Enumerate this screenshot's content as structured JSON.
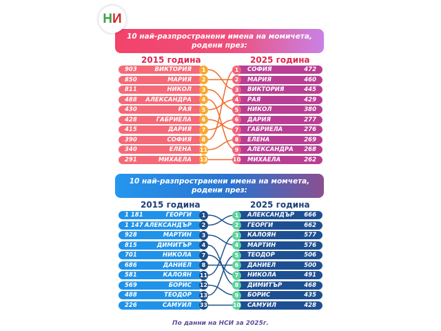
{
  "logo": {
    "text": "НИ"
  },
  "girls": {
    "title_line1": "10 най-разпространени имена на момичета,",
    "title_line2": "родени през:",
    "year_left": "2015 година",
    "year_right": "2025 година",
    "colors": {
      "left_bar": "#f46a78",
      "left_circle": "#f8a832",
      "right_bar": "#b83f93",
      "right_circle": "#f1637e",
      "line": "#ef6a2a",
      "header": "#e0264f"
    },
    "left": [
      {
        "count": "903",
        "name": "ВИКТОРИЯ",
        "rank": "1"
      },
      {
        "count": "850",
        "name": "МАРИЯ",
        "rank": "2"
      },
      {
        "count": "811",
        "name": "НИКОЛ",
        "rank": "3"
      },
      {
        "count": "488",
        "name": "АЛЕКСАНДРА",
        "rank": "4"
      },
      {
        "count": "430",
        "name": "РАЯ",
        "rank": "5"
      },
      {
        "count": "428",
        "name": "ГАБРИЕЛА",
        "rank": "6"
      },
      {
        "count": "415",
        "name": "ДАРИЯ",
        "rank": "7"
      },
      {
        "count": "390",
        "name": "СОФИЯ",
        "rank": "8"
      },
      {
        "count": "340",
        "name": "ЕЛЕНА",
        "rank": "11"
      },
      {
        "count": "291",
        "name": "МИХАЕЛА",
        "rank": "13"
      }
    ],
    "right": [
      {
        "rank": "1",
        "name": "СОФИЯ",
        "count": "472"
      },
      {
        "rank": "2",
        "name": "МАРИЯ",
        "count": "460"
      },
      {
        "rank": "3",
        "name": "ВИКТОРИЯ",
        "count": "445"
      },
      {
        "rank": "4",
        "name": "РАЯ",
        "count": "429"
      },
      {
        "rank": "5",
        "name": "НИКОЛ",
        "count": "380"
      },
      {
        "rank": "6",
        "name": "ДАРИЯ",
        "count": "277"
      },
      {
        "rank": "7",
        "name": "ГАБРИЕЛА",
        "count": "276"
      },
      {
        "rank": "8",
        "name": "ЕЛЕНА",
        "count": "269"
      },
      {
        "rank": "9",
        "name": "АЛЕКСАНДРА",
        "count": "268"
      },
      {
        "rank": "10",
        "name": "МИХАЕЛА",
        "count": "262"
      }
    ]
  },
  "boys": {
    "title_line1": "10 най-разпространени имена на момчета,",
    "title_line2": "родени през:",
    "year_left": "2015 година",
    "year_right": "2025 година",
    "colors": {
      "left_bar": "#1f92ea",
      "left_circle": "#1b4c86",
      "right_bar": "#1d4f93",
      "right_circle": "#5cd39c",
      "line": "#1b4f8a",
      "header": "#1b3f78"
    },
    "left": [
      {
        "count": "1 181",
        "name": "ГЕОРГИ",
        "rank": "1"
      },
      {
        "count": "1 147",
        "name": "АЛЕКСАНДЪР",
        "rank": "2"
      },
      {
        "count": "928",
        "name": "МАРТИН",
        "rank": "3"
      },
      {
        "count": "815",
        "name": "ДИМИТЪР",
        "rank": "4"
      },
      {
        "count": "701",
        "name": "НИКОЛА",
        "rank": "7"
      },
      {
        "count": "686",
        "name": "ДАНИЕЛ",
        "rank": "8"
      },
      {
        "count": "581",
        "name": "КАЛОЯН",
        "rank": "11"
      },
      {
        "count": "569",
        "name": "БОРИС",
        "rank": "12"
      },
      {
        "count": "488",
        "name": "ТЕОДОР",
        "rank": "13"
      },
      {
        "count": "226",
        "name": "САМУИЛ",
        "rank": "33"
      }
    ],
    "right": [
      {
        "rank": "1",
        "name": "АЛЕКСАНДЪР",
        "count": "666"
      },
      {
        "rank": "2",
        "name": "ГЕОРГИ",
        "count": "662"
      },
      {
        "rank": "3",
        "name": "КАЛОЯН",
        "count": "577"
      },
      {
        "rank": "4",
        "name": "МАРТИН",
        "count": "576"
      },
      {
        "rank": "5",
        "name": "ТЕОДОР",
        "count": "506"
      },
      {
        "rank": "6",
        "name": "ДАНИЕЛ",
        "count": "500"
      },
      {
        "rank": "7",
        "name": "НИКОЛА",
        "count": "491"
      },
      {
        "rank": "8",
        "name": "ДИМИТЪР",
        "count": "468"
      },
      {
        "rank": "9",
        "name": "БОРИС",
        "count": "435"
      },
      {
        "rank": "10",
        "name": "САМУИЛ",
        "count": "428"
      }
    ]
  },
  "footer": "По данни на НСИ за 2025г."
}
